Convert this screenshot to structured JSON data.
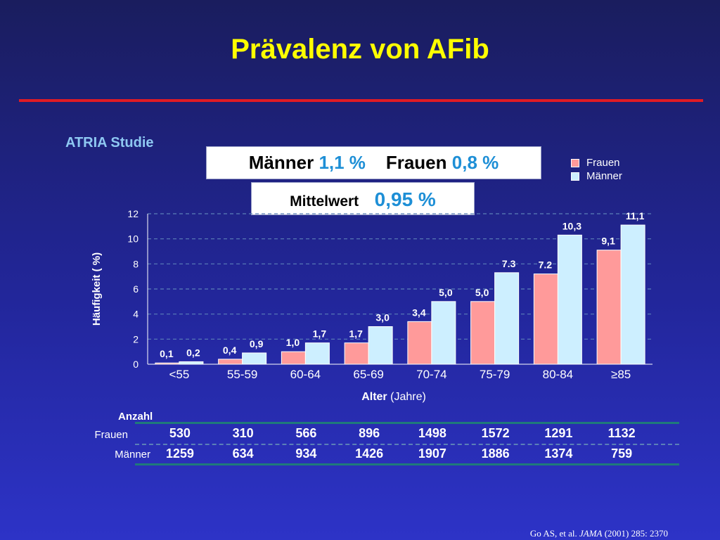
{
  "title": "Prävalenz von AFib",
  "study_label": "ATRIA Studie",
  "summary_box": {
    "men_label": "Männer",
    "men_value": "1,1 %",
    "women_label": "Frauen",
    "women_value": "0,8 %"
  },
  "mean_box": {
    "label": "Mittelwert",
    "value": "0,95 %"
  },
  "colors": {
    "title": "#ffff00",
    "rule": "#e01b24",
    "frauen_bar": "#ff9a9a",
    "maenner_bar": "#cdefff",
    "value_highlight": "#1e8fd6",
    "study_label": "#8ec8f2"
  },
  "chart_data": {
    "type": "bar",
    "categories": [
      "<55",
      "55-59",
      "60-64",
      "65-69",
      "70-74",
      "75-79",
      "80-84",
      "≥85"
    ],
    "series": [
      {
        "name": "Frauen",
        "values": [
          0.1,
          0.4,
          1.0,
          1.7,
          3.4,
          5.0,
          7.2,
          9.1
        ],
        "labels": [
          "0,1",
          "0,4",
          "1,0",
          "1,7",
          "3,4",
          "5,0",
          "7.2",
          "9,1"
        ]
      },
      {
        "name": "Männer",
        "values": [
          0.2,
          0.9,
          1.7,
          3.0,
          5.0,
          7.3,
          10.3,
          11.1
        ],
        "labels": [
          "0,2",
          "0,9",
          "1,7",
          "3,0",
          "5,0",
          "7.3",
          "10,3",
          "11,1"
        ]
      }
    ],
    "yticks": [
      "0",
      "2",
      "4",
      "6",
      "8",
      "10",
      "12"
    ],
    "ylim": [
      0,
      12
    ],
    "ylabel": "Häufigkeit ( %)",
    "xlabel_bold": "Alter",
    "xlabel_rest": "(Jahre)",
    "grid": true,
    "legend_position": "top-right"
  },
  "counts_table": {
    "heading": "Anzahl",
    "rows": [
      {
        "label": "Frauen",
        "values": [
          "530",
          "310",
          "566",
          "896",
          "1498",
          "1572",
          "1291",
          "1132"
        ]
      },
      {
        "label": "Männer",
        "values": [
          "1259",
          "634",
          "934",
          "1426",
          "1907",
          "1886",
          "1374",
          "759"
        ]
      }
    ]
  },
  "citation": {
    "authors": "Go AS, et al.",
    "journal": "JAMA",
    "details": "(2001) 285: 2370"
  }
}
